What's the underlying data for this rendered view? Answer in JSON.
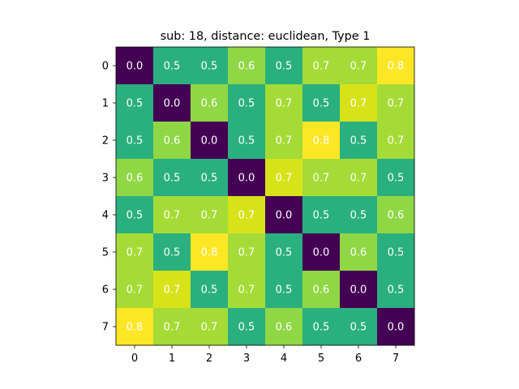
{
  "chart_data": {
    "type": "heatmap",
    "title": "sub: 18, distance: euclidean, Type 1",
    "x_ticks": [
      "0",
      "1",
      "2",
      "3",
      "4",
      "5",
      "6",
      "7"
    ],
    "y_ticks": [
      "0",
      "1",
      "2",
      "3",
      "4",
      "5",
      "6",
      "7"
    ],
    "values": [
      [
        0.0,
        0.5,
        0.5,
        0.6,
        0.5,
        0.7,
        0.7,
        0.8
      ],
      [
        0.5,
        0.0,
        0.6,
        0.5,
        0.7,
        0.5,
        0.7,
        0.7
      ],
      [
        0.5,
        0.6,
        0.0,
        0.5,
        0.7,
        0.8,
        0.5,
        0.7
      ],
      [
        0.6,
        0.5,
        0.5,
        0.0,
        0.7,
        0.7,
        0.7,
        0.5
      ],
      [
        0.5,
        0.7,
        0.7,
        0.7,
        0.0,
        0.5,
        0.5,
        0.6
      ],
      [
        0.7,
        0.5,
        0.8,
        0.7,
        0.5,
        0.0,
        0.6,
        0.5
      ],
      [
        0.7,
        0.7,
        0.5,
        0.7,
        0.5,
        0.6,
        0.0,
        0.5
      ],
      [
        0.8,
        0.7,
        0.7,
        0.5,
        0.6,
        0.5,
        0.5,
        0.0
      ]
    ],
    "cell_colors": [
      [
        "#440154",
        "#2ab07f",
        "#2ab07f",
        "#8fd744",
        "#2ab07f",
        "#a5db36",
        "#a5db36",
        "#fde725"
      ],
      [
        "#2ab07f",
        "#440154",
        "#8fd744",
        "#2ab07f",
        "#a5db36",
        "#2ab07f",
        "#d8e219",
        "#a5db36"
      ],
      [
        "#2ab07f",
        "#8fd744",
        "#440154",
        "#2ab07f",
        "#a5db36",
        "#fde725",
        "#2ab07f",
        "#a5db36"
      ],
      [
        "#8fd744",
        "#2ab07f",
        "#2ab07f",
        "#440154",
        "#d8e219",
        "#a5db36",
        "#a5db36",
        "#2ab07f"
      ],
      [
        "#2ab07f",
        "#a5db36",
        "#a5db36",
        "#d8e219",
        "#440154",
        "#2ab07f",
        "#2ab07f",
        "#8fd744"
      ],
      [
        "#a5db36",
        "#2ab07f",
        "#fde725",
        "#a5db36",
        "#2ab07f",
        "#440154",
        "#8fd744",
        "#2ab07f"
      ],
      [
        "#a5db36",
        "#d8e219",
        "#2ab07f",
        "#a5db36",
        "#2ab07f",
        "#8fd744",
        "#440154",
        "#2ab07f"
      ],
      [
        "#fde725",
        "#a5db36",
        "#a5db36",
        "#2ab07f",
        "#8fd744",
        "#2ab07f",
        "#2ab07f",
        "#440154"
      ]
    ],
    "label_color": "#ffffff",
    "colormap": "viridis",
    "grid": false
  }
}
